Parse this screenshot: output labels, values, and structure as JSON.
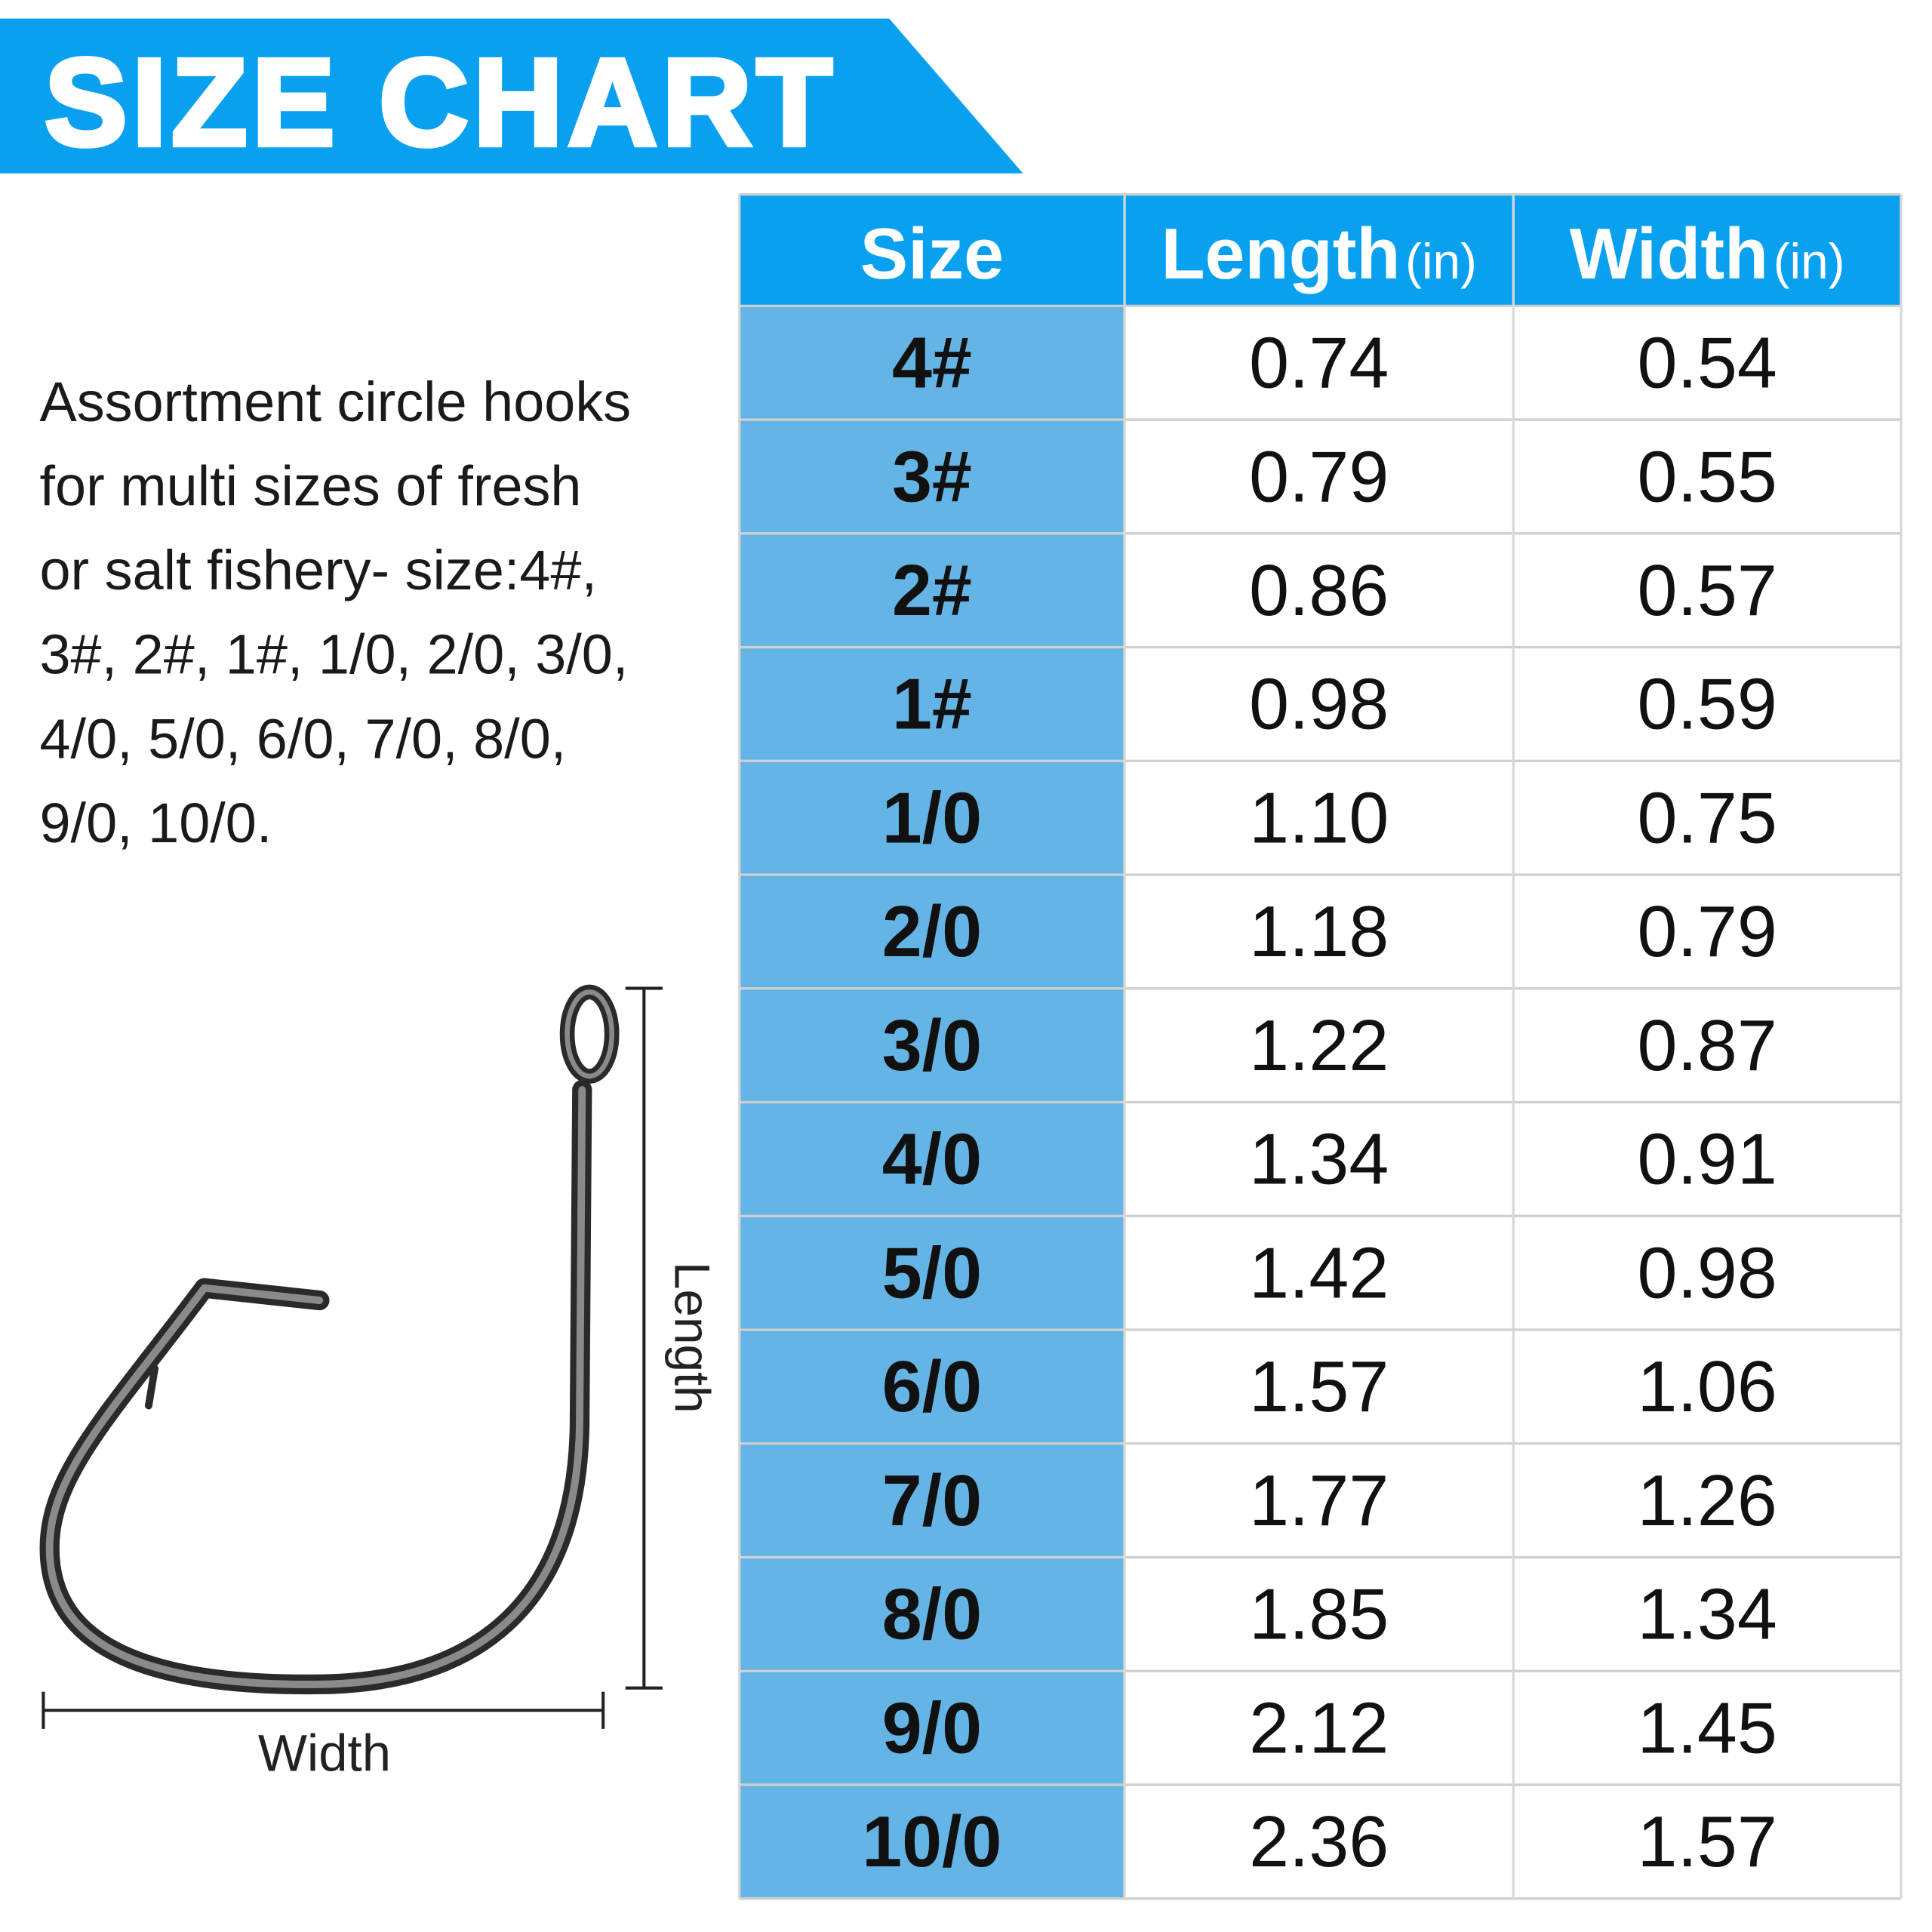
{
  "header": {
    "title": "SIZE CHART"
  },
  "description": [
    "Assortment circle hooks",
    "for multi sizes of fresh",
    "or salt fishery- size:4#,",
    "3#, 2#, 1#, 1/0, 2/0, 3/0,",
    "4/0, 5/0, 6/0, 7/0, 8/0,",
    "9/0, 10/0."
  ],
  "diagram": {
    "length_label": "Length",
    "width_label": "Width"
  },
  "table": {
    "columns": [
      {
        "label": "Size"
      },
      {
        "label": "Length",
        "unit": "(in)"
      },
      {
        "label": "Width",
        "unit": "(in)"
      }
    ],
    "rows": [
      [
        "4#",
        "0.74",
        "0.54"
      ],
      [
        "3#",
        "0.79",
        "0.55"
      ],
      [
        "2#",
        "0.86",
        "0.57"
      ],
      [
        "1#",
        "0.98",
        "0.59"
      ],
      [
        "1/0",
        "1.10",
        "0.75"
      ],
      [
        "2/0",
        "1.18",
        "0.79"
      ],
      [
        "3/0",
        "1.22",
        "0.87"
      ],
      [
        "4/0",
        "1.34",
        "0.91"
      ],
      [
        "5/0",
        "1.42",
        "0.98"
      ],
      [
        "6/0",
        "1.57",
        "1.06"
      ],
      [
        "7/0",
        "1.77",
        "1.26"
      ],
      [
        "8/0",
        "1.85",
        "1.34"
      ],
      [
        "9/0",
        "2.12",
        "1.45"
      ],
      [
        "10/0",
        "2.36",
        "1.57"
      ]
    ]
  }
}
